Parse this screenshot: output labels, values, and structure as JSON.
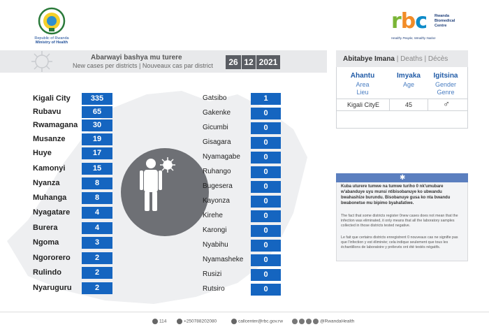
{
  "header": {
    "moh_line1": "Republic of Rwanda",
    "moh_line2": "Ministry of Health",
    "rbc_letters": [
      "r",
      "b",
      "c"
    ],
    "rbc_name": [
      "Rwanda",
      "Biomedical",
      "Centre"
    ],
    "rbc_tagline": "Healthy People, Wealthy Nation"
  },
  "title": {
    "line1": "Abarwayi bashya mu turere",
    "line2": "New cases per districts  |  Nouveaux cas par district",
    "date": [
      "26",
      "12",
      "2021"
    ]
  },
  "left_districts": [
    {
      "name": "Kigali City",
      "value": "335"
    },
    {
      "name": "Rubavu",
      "value": "65"
    },
    {
      "name": "Rwamagana",
      "value": "30"
    },
    {
      "name": "Musanze",
      "value": "19"
    },
    {
      "name": "Huye",
      "value": "17"
    },
    {
      "name": "Kamonyi",
      "value": "15"
    },
    {
      "name": "Nyanza",
      "value": "8"
    },
    {
      "name": "Muhanga",
      "value": "8"
    },
    {
      "name": "Nyagatare",
      "value": "4"
    },
    {
      "name": "Burera",
      "value": "4"
    },
    {
      "name": "Ngoma",
      "value": "3"
    },
    {
      "name": "Ngororero",
      "value": "2"
    },
    {
      "name": "Rulindo",
      "value": "2"
    },
    {
      "name": "Nyaruguru",
      "value": "2"
    }
  ],
  "right_districts": [
    {
      "name": "Gatsibo",
      "value": "1"
    },
    {
      "name": "Gakenke",
      "value": "0"
    },
    {
      "name": "Gicumbi",
      "value": "0"
    },
    {
      "name": "Gisagara",
      "value": "0"
    },
    {
      "name": "Nyamagabe",
      "value": "0"
    },
    {
      "name": "Ruhango",
      "value": "0"
    },
    {
      "name": "Bugesera",
      "value": "0"
    },
    {
      "name": "Kayonza",
      "value": "0"
    },
    {
      "name": "Kirehe",
      "value": "0"
    },
    {
      "name": "Karongi",
      "value": "0"
    },
    {
      "name": "Nyabihu",
      "value": "0"
    },
    {
      "name": "Nyamasheke",
      "value": "0"
    },
    {
      "name": "Rusizi",
      "value": "0"
    },
    {
      "name": "Rutsiro",
      "value": "0"
    }
  ],
  "deaths": {
    "title_bold": "Abitabye Imana",
    "title_rest": " |  Deaths  |  Décès",
    "columns": [
      {
        "head": "Ahantu",
        "sub1": "Area",
        "sub2": "Lieu"
      },
      {
        "head": "Imyaka",
        "sub1": "Age",
        "sub2": ""
      },
      {
        "head": "Igitsina",
        "sub1": "Gender",
        "sub2": "Genre"
      }
    ],
    "row": {
      "area": "Kigali CityE",
      "age": "45",
      "gender": "♂"
    }
  },
  "note": {
    "star": "✱",
    "p1": "Kuba uturere tumwe na tumwe turiho 0 nk'umubare w'abanduye uyu munsi ntibisobanuye ko ubwandu bwahashize burundu. Bisobanuye gusa ko nta bwandu bwabonetse mu bipimo byahafatiwe.",
    "p2": "The fact that some districts register 0new cases does not mean that the infection was eliminated, it only means that all the laboratory samples collected in those districts tested negative.",
    "p3": "Le fait que certains districts enregistrent 0 nouveaux cas ne signifie pas que l'infection y est éliminée; cela indique seulement que tous les échantillons de laboratoire y prélevés ont été testés négatifs."
  },
  "footer": {
    "hotline": "114",
    "phone": "+250788202080",
    "email": "callcenter@rbc.gov.rw",
    "social": "@RwandaHealth"
  },
  "colors": {
    "value_box": "#1565c0",
    "date_box": "#5a5d63",
    "accent_blue": "#1f5aa6"
  }
}
